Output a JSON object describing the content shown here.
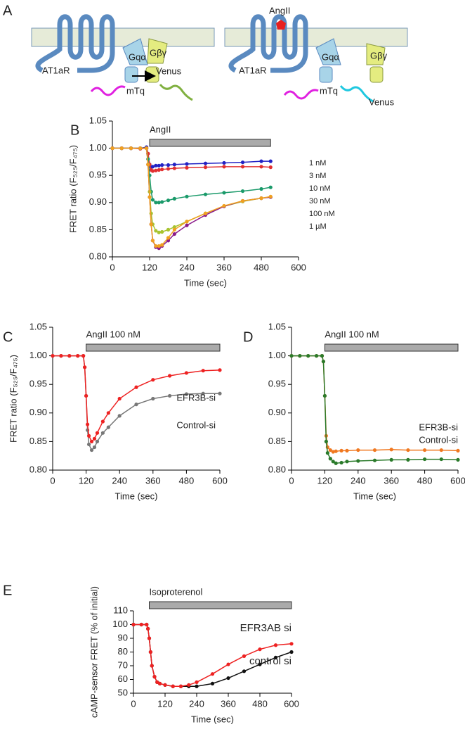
{
  "diagram": {
    "panel": "A",
    "left": {
      "receptor": "AT1aR",
      "galpha": "Gqα",
      "gbg": "Gβγ",
      "acceptor": "Venus",
      "donor": "mTq"
    },
    "right": {
      "ligand": "AngII",
      "receptor": "AT1aR",
      "galpha": "Gqα",
      "gbg": "Gβγ",
      "acceptor": "Venus",
      "donor": "mTq"
    }
  },
  "chart_data": [
    {
      "panel": "B",
      "type": "line",
      "xlabel": "Time (sec)",
      "ylabel": "FRET ratio (F₅₂₅/F₄₇₅)",
      "stimulus": {
        "label": "AngII",
        "start": 120,
        "end": 510
      },
      "xlim": [
        0,
        600
      ],
      "xticks": [
        0,
        120,
        240,
        360,
        480,
        600
      ],
      "ylim": [
        0.8,
        1.05
      ],
      "yticks": [
        {
          "value": 0.8,
          "label": "0.80"
        },
        {
          "value": 0.85,
          "label": "0.85"
        },
        {
          "value": 0.9,
          "label": "0.90"
        },
        {
          "value": 0.95,
          "label": "0.95"
        },
        {
          "value": 1.0,
          "label": "1.00"
        },
        {
          "value": 1.05,
          "label": "1.05"
        }
      ],
      "x": [
        0,
        30,
        60,
        90,
        110,
        115,
        120,
        125,
        130,
        140,
        150,
        160,
        180,
        200,
        240,
        300,
        360,
        420,
        480,
        510
      ],
      "series": [
        {
          "name": "1 nM",
          "color": "#2222c4",
          "values": [
            1,
            1,
            1,
            1,
            1.002,
            0.99,
            0.97,
            0.965,
            0.966,
            0.968,
            0.968,
            0.969,
            0.969,
            0.97,
            0.971,
            0.972,
            0.973,
            0.974,
            0.976,
            0.976
          ]
        },
        {
          "name": "3 nM",
          "color": "#e23030",
          "values": [
            1,
            1,
            1,
            0.999,
            1,
            0.99,
            0.97,
            0.96,
            0.958,
            0.959,
            0.96,
            0.961,
            0.962,
            0.963,
            0.964,
            0.965,
            0.966,
            0.966,
            0.966,
            0.965
          ]
        },
        {
          "name": "10 nM",
          "color": "#1a9a6a",
          "values": [
            1,
            1,
            1,
            1,
            1,
            0.98,
            0.95,
            0.92,
            0.905,
            0.9,
            0.9,
            0.901,
            0.904,
            0.907,
            0.911,
            0.915,
            0.918,
            0.921,
            0.925,
            0.928
          ]
        },
        {
          "name": "30 nM",
          "color": "#a8c430",
          "values": [
            1,
            1,
            1,
            1,
            1,
            0.97,
            0.92,
            0.88,
            0.86,
            0.848,
            0.845,
            0.846,
            0.85,
            0.855,
            0.865,
            0.88,
            0.893,
            0.902,
            0.908,
            0.91
          ]
        },
        {
          "name": "100 nM",
          "color": "#8a1a8a",
          "values": [
            1,
            1,
            1,
            1,
            1,
            0.97,
            0.91,
            0.86,
            0.83,
            0.818,
            0.816,
            0.82,
            0.83,
            0.842,
            0.858,
            0.877,
            0.893,
            0.903,
            0.908,
            0.91
          ]
        },
        {
          "name": "1 µM",
          "color": "#f0a020",
          "values": [
            1,
            1,
            1,
            1,
            1,
            0.97,
            0.91,
            0.86,
            0.83,
            0.82,
            0.82,
            0.822,
            0.835,
            0.85,
            0.865,
            0.88,
            0.894,
            0.903,
            0.908,
            0.911
          ]
        }
      ]
    },
    {
      "panel": "C",
      "type": "line",
      "xlabel": "Time (sec)",
      "ylabel": "FRET ratio (F₅₂₅/F₄₇₅)",
      "stimulus": {
        "label": "AngII 100 nM",
        "start": 120,
        "end": 600
      },
      "xlim": [
        0,
        600
      ],
      "xticks": [
        0,
        120,
        240,
        360,
        480,
        600
      ],
      "ylim": [
        0.8,
        1.05
      ],
      "yticks": [
        {
          "value": 0.8,
          "label": "0.80"
        },
        {
          "value": 0.85,
          "label": "0.85"
        },
        {
          "value": 0.9,
          "label": "0.90"
        },
        {
          "value": 0.95,
          "label": "0.95"
        },
        {
          "value": 1.0,
          "label": "1.00"
        },
        {
          "value": 1.05,
          "label": "1.05"
        }
      ],
      "x": [
        0,
        30,
        60,
        90,
        110,
        115,
        120,
        125,
        130,
        140,
        150,
        160,
        180,
        200,
        240,
        300,
        360,
        420,
        480,
        540,
        600
      ],
      "series": [
        {
          "name": "Control-si",
          "color": "#777777",
          "values": [
            1,
            1,
            1,
            1,
            1,
            0.98,
            0.93,
            0.87,
            0.845,
            0.835,
            0.84,
            0.85,
            0.865,
            0.875,
            0.895,
            0.915,
            0.925,
            0.93,
            0.933,
            0.934,
            0.934
          ]
        },
        {
          "name": "EFR3B-si",
          "color": "#ee2222",
          "values": [
            1,
            1,
            1,
            1,
            1,
            0.98,
            0.93,
            0.88,
            0.86,
            0.85,
            0.855,
            0.865,
            0.885,
            0.9,
            0.925,
            0.945,
            0.958,
            0.965,
            0.97,
            0.974,
            0.975
          ]
        }
      ]
    },
    {
      "panel": "D",
      "type": "line",
      "xlabel": "Time (sec)",
      "stimulus": {
        "label": "AngII 100 nM",
        "start": 120,
        "end": 600
      },
      "xlim": [
        0,
        600
      ],
      "xticks": [
        0,
        120,
        240,
        360,
        480,
        600
      ],
      "ylim": [
        0.8,
        1.05
      ],
      "yticks": [
        {
          "value": 0.8,
          "label": "0.80"
        },
        {
          "value": 0.85,
          "label": "0.85"
        },
        {
          "value": 0.9,
          "label": "0.90"
        },
        {
          "value": 0.95,
          "label": "0.95"
        },
        {
          "value": 1.0,
          "label": "1.00"
        },
        {
          "value": 1.05,
          "label": "1.05"
        }
      ],
      "x": [
        0,
        30,
        60,
        90,
        110,
        115,
        120,
        125,
        130,
        140,
        150,
        160,
        180,
        200,
        240,
        300,
        360,
        420,
        480,
        540,
        600
      ],
      "series": [
        {
          "name": "EFR3B-si",
          "color": "#f07820",
          "values": [
            1,
            1,
            1,
            1,
            1,
            0.99,
            0.93,
            0.86,
            0.84,
            0.835,
            0.832,
            0.833,
            0.834,
            0.834,
            0.835,
            0.835,
            0.836,
            0.835,
            0.835,
            0.835,
            0.834
          ]
        },
        {
          "name": "Control-si",
          "color": "#2a7a2a",
          "values": [
            1,
            1,
            1,
            1,
            1,
            0.99,
            0.93,
            0.85,
            0.83,
            0.82,
            0.815,
            0.812,
            0.813,
            0.815,
            0.816,
            0.817,
            0.818,
            0.818,
            0.819,
            0.819,
            0.818
          ]
        }
      ]
    },
    {
      "panel": "E",
      "type": "line",
      "xlabel": "Time (sec)",
      "ylabel": "cAMP-sensor FRET (% of initial)",
      "stimulus": {
        "label": "Isoproterenol",
        "start": 60,
        "end": 600
      },
      "xlim": [
        0,
        600
      ],
      "xticks": [
        0,
        120,
        240,
        360,
        480,
        600
      ],
      "ylim": [
        50,
        110
      ],
      "yticks": [
        50,
        60,
        70,
        80,
        90,
        100,
        110
      ],
      "x": [
        0,
        30,
        50,
        55,
        60,
        65,
        70,
        80,
        90,
        100,
        120,
        150,
        180,
        210,
        240,
        300,
        360,
        420,
        480,
        540,
        600
      ],
      "series": [
        {
          "name": "control si",
          "color": "#111111",
          "values": [
            100,
            100,
            100,
            97,
            90,
            80,
            70,
            62,
            58,
            57,
            56,
            55,
            55,
            55,
            55,
            57,
            61,
            66,
            71,
            76,
            80
          ]
        },
        {
          "name": "EFR3AB si",
          "color": "#ee2222",
          "values": [
            100,
            100,
            100,
            97,
            90,
            80,
            70,
            62,
            58,
            57,
            56,
            55,
            55,
            56,
            58,
            64,
            71,
            77,
            82,
            85,
            86
          ]
        }
      ]
    }
  ]
}
